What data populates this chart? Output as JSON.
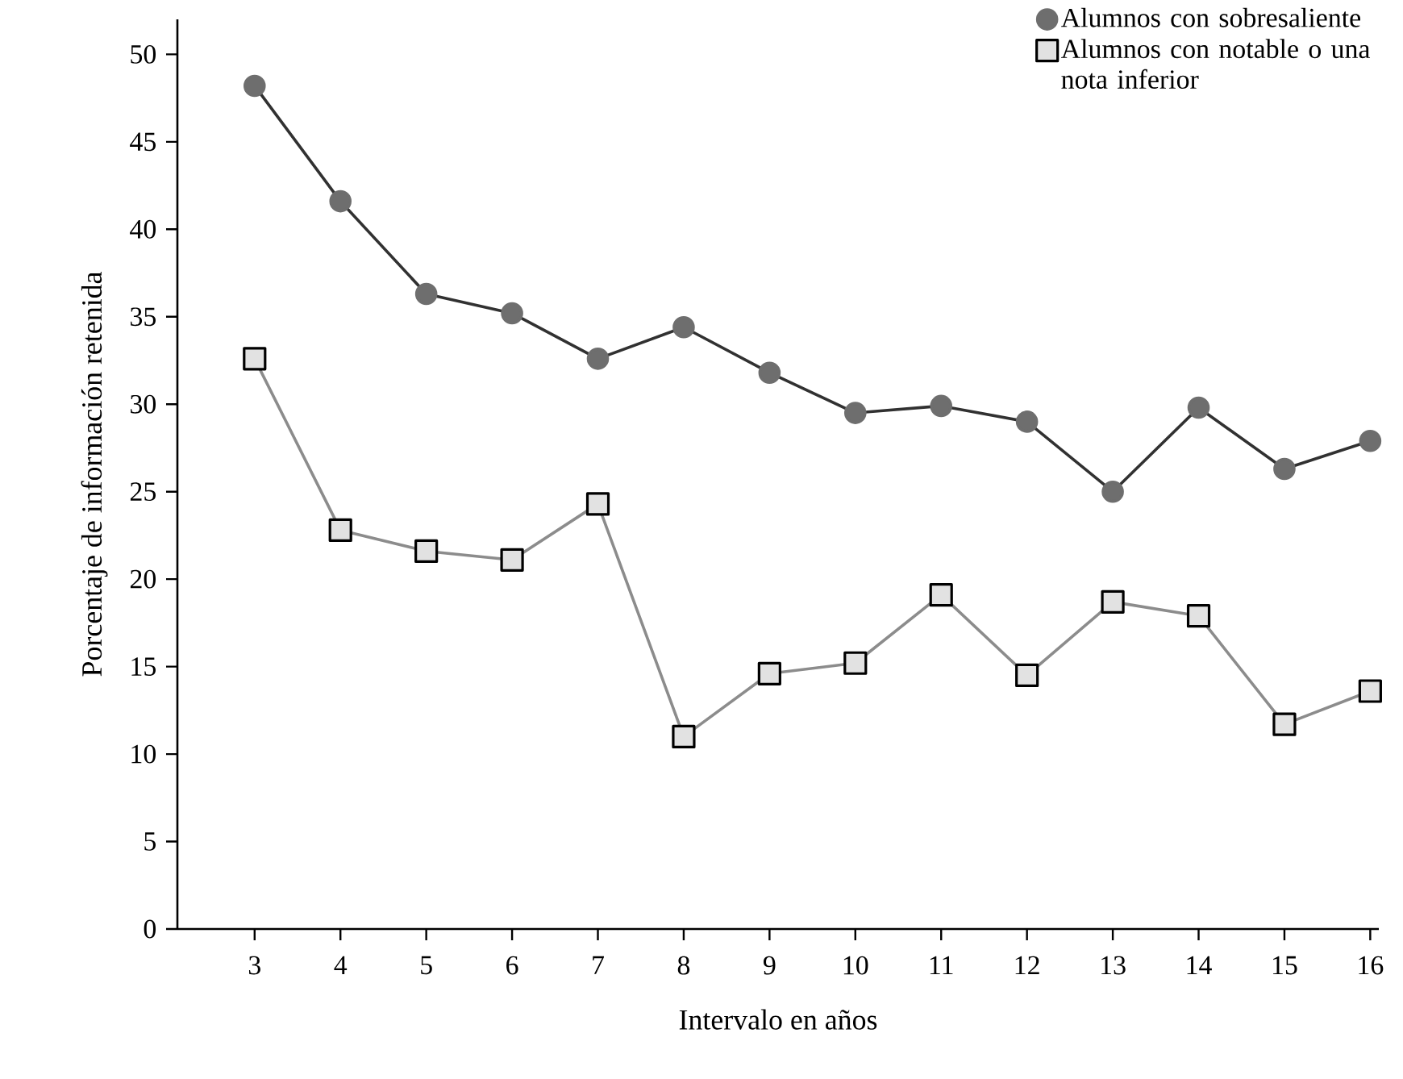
{
  "chart_data": {
    "type": "line",
    "xlabel": "Intervalo en años",
    "ylabel": "Porcentaje de información retenida",
    "x": [
      3,
      4,
      5,
      6,
      7,
      8,
      9,
      10,
      11,
      12,
      13,
      14,
      15,
      16
    ],
    "series": [
      {
        "name": "Alumnos con sobresaliente",
        "color": "#6e6e6e",
        "marker": "circle",
        "values": [
          48.2,
          41.6,
          36.3,
          35.2,
          32.6,
          34.4,
          31.8,
          29.5,
          29.9,
          29.0,
          25.0,
          29.8,
          26.3,
          27.9
        ]
      },
      {
        "name": "Alumnos con notable o una nota inferior",
        "color": "#8c8c8c",
        "marker": "square",
        "values": [
          32.6,
          22.8,
          21.6,
          21.1,
          24.3,
          11.0,
          14.6,
          15.2,
          19.1,
          14.5,
          18.7,
          17.9,
          11.7,
          13.6
        ]
      }
    ],
    "xlim": [
      2.1,
      16.1
    ],
    "ylim": [
      0,
      52
    ],
    "xticks": [
      3,
      4,
      5,
      6,
      7,
      8,
      9,
      10,
      11,
      12,
      13,
      14,
      15,
      16
    ],
    "yticks": [
      0,
      5,
      10,
      15,
      20,
      25,
      30,
      35,
      40,
      45,
      50
    ],
    "grid": false,
    "legend": "top right",
    "line_style": "solid"
  }
}
